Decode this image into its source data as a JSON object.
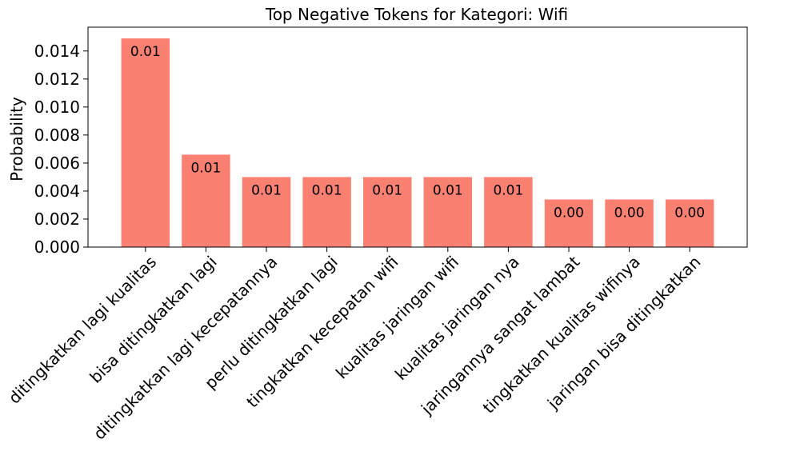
{
  "chart_data": {
    "type": "bar",
    "title": "Top Negative Tokens for Kategori: Wifi",
    "xlabel": "",
    "ylabel": "Probability",
    "categories": [
      "ditingkatkan lagi kualitas",
      "bisa ditingkatkan lagi",
      "ditingkatkan lagi kecepatannya",
      "perlu ditingkatkan lagi",
      "tingkatkan kecepatan wifi",
      "kualitas jaringan wifi",
      "kualitas jaringan nya",
      "jaringannya sangat lambat",
      "tingkatkan kualitas wifinya",
      "jaringan bisa ditingkatkan"
    ],
    "values": [
      0.0149,
      0.0066,
      0.005,
      0.005,
      0.005,
      0.005,
      0.005,
      0.0034,
      0.0034,
      0.0034
    ],
    "data_labels": [
      "0.01",
      "0.01",
      "0.01",
      "0.01",
      "0.01",
      "0.01",
      "0.01",
      "0.00",
      "0.00",
      "0.00"
    ],
    "ylim": [
      0,
      0.0157
    ],
    "yticks": [
      0.0,
      0.002,
      0.004,
      0.006,
      0.008,
      0.01,
      0.012,
      0.014
    ],
    "ytick_labels": [
      "0.000",
      "0.002",
      "0.004",
      "0.006",
      "0.008",
      "0.010",
      "0.012",
      "0.014"
    ],
    "grid": false,
    "legend": "none",
    "bar_color": "#fa8072"
  }
}
